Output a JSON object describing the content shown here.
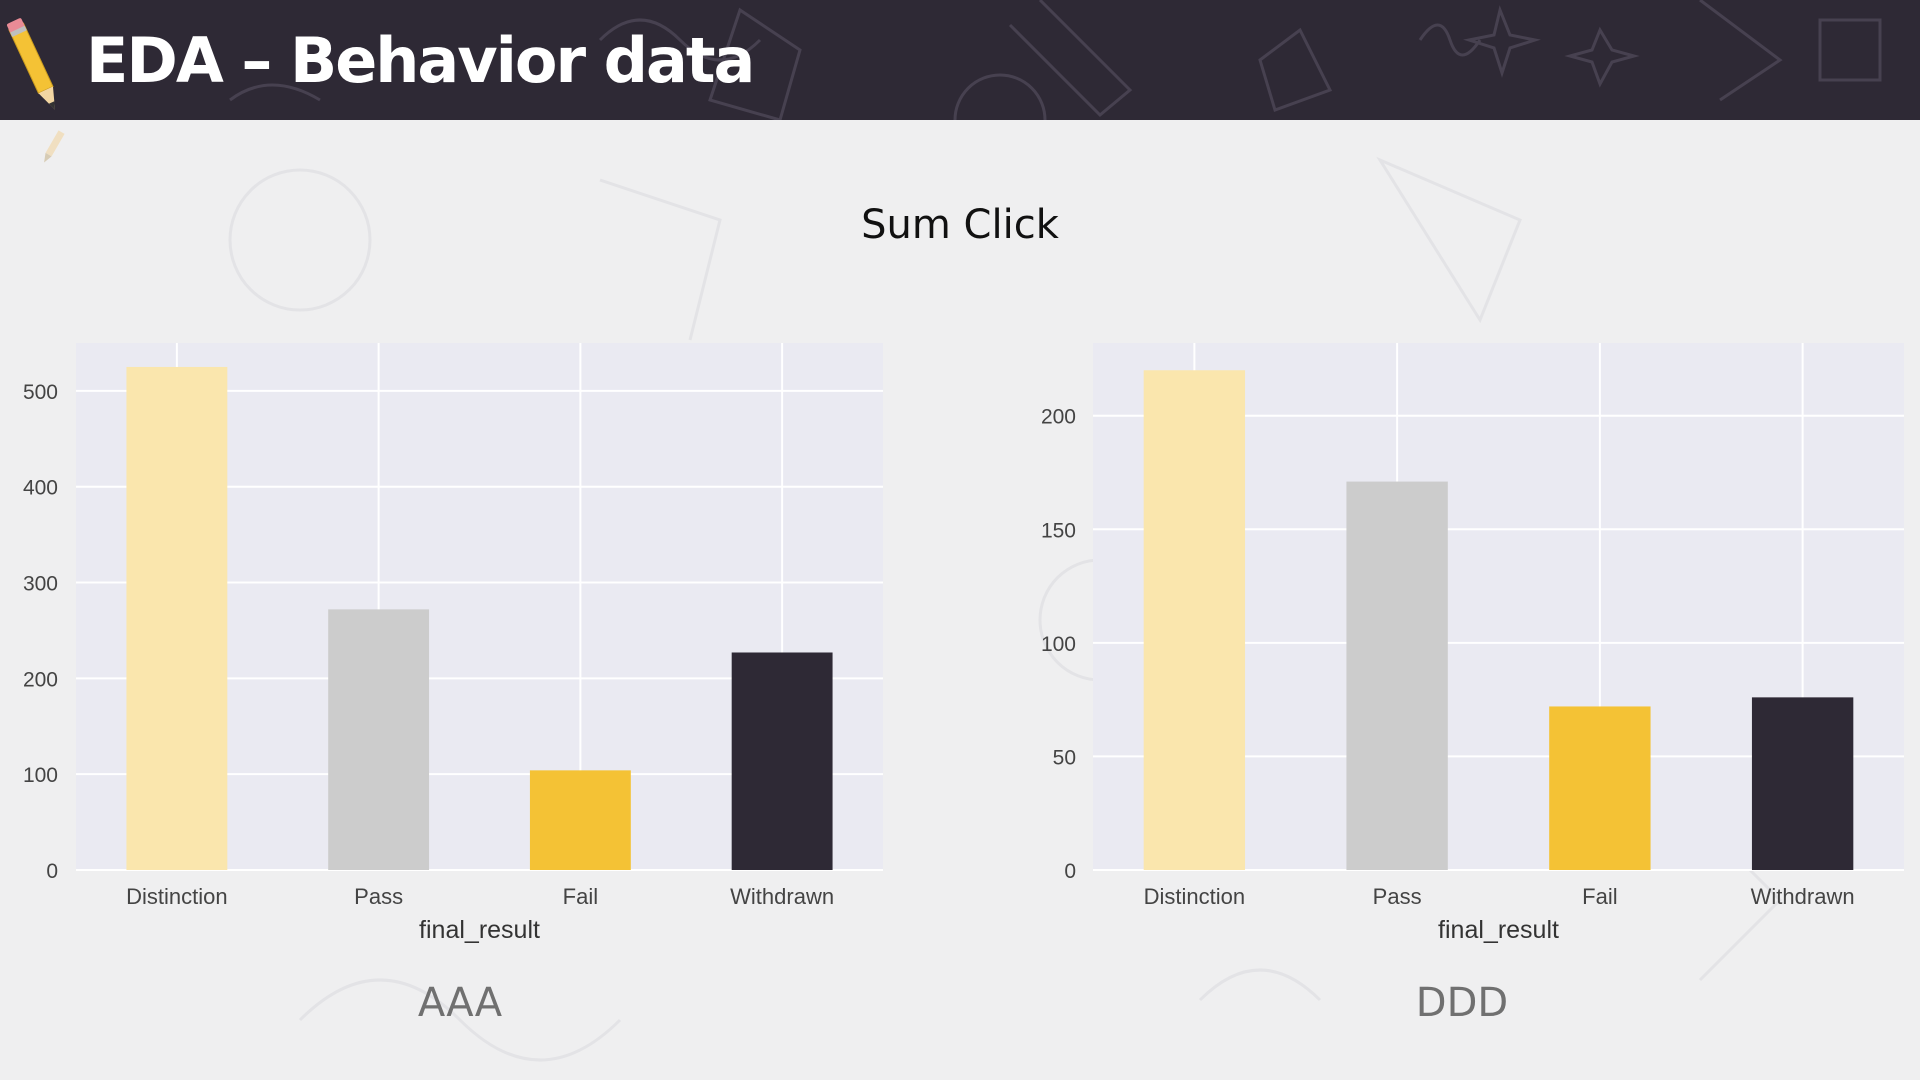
{
  "header": {
    "title": "EDA – Behavior data"
  },
  "section": {
    "title": "Sum Click"
  },
  "colors": {
    "header_bg": "#2e2935",
    "plot_bg": "#eaeaf2",
    "bar_colors": [
      "#fae6ad",
      "#cccccc",
      "#f4c235",
      "#2e2935"
    ]
  },
  "icons": [
    "pencil-icon",
    "pencil-small-icon"
  ],
  "chart_data": [
    {
      "type": "bar",
      "caption": "AAA",
      "title": "",
      "xlabel": "final_result",
      "ylabel": "",
      "categories": [
        "Distinction",
        "Pass",
        "Fail",
        "Withdrawn"
      ],
      "values": [
        525,
        272,
        104,
        227
      ],
      "ylim": [
        0,
        550
      ],
      "yticks": [
        0,
        100,
        200,
        300,
        400,
        500
      ],
      "grid": true
    },
    {
      "type": "bar",
      "caption": "DDD",
      "title": "",
      "xlabel": "final_result",
      "ylabel": "",
      "categories": [
        "Distinction",
        "Pass",
        "Fail",
        "Withdrawn"
      ],
      "values": [
        220,
        171,
        72,
        76
      ],
      "ylim": [
        0,
        232
      ],
      "yticks": [
        0,
        50,
        100,
        150,
        200
      ],
      "grid": true
    }
  ]
}
